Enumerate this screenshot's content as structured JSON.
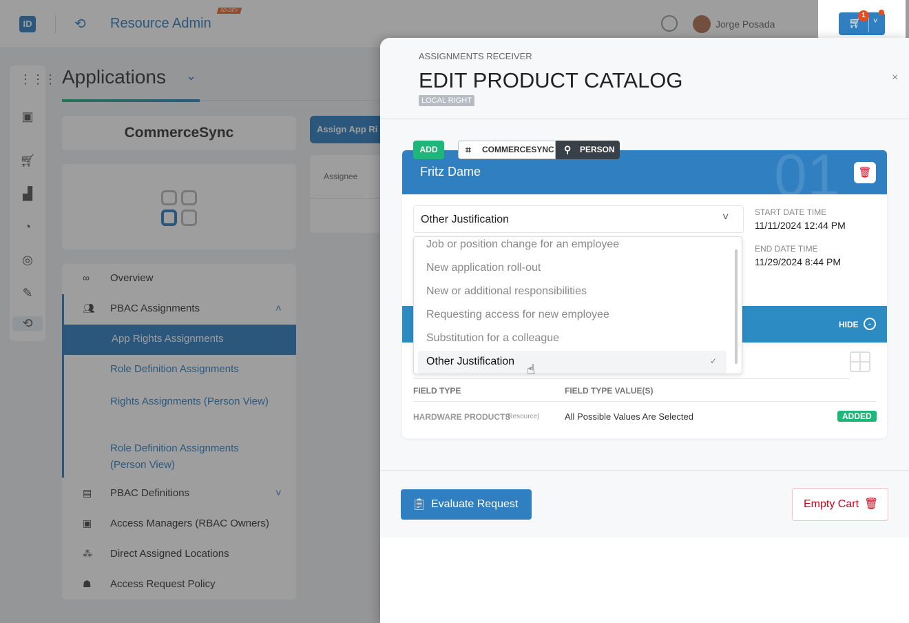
{
  "header": {
    "app_title": "Resource Admin",
    "env_badge": "IID-DEV",
    "user_name": "Jorge Posada",
    "cart_count": "1"
  },
  "page": {
    "title": "Applications",
    "app_name": "CommerceSync",
    "assign_button": "Assign App Ri",
    "table_header": "Assignee"
  },
  "menu": [
    {
      "label": "Overview",
      "icon": "glasses-icon"
    },
    {
      "label": "PBAC Assignments",
      "icon": "group-icon"
    },
    {
      "label": "App Rights Assignments"
    },
    {
      "label": "Role Definition Assignments"
    },
    {
      "label": "Rights Assignments (Person View)"
    },
    {
      "label": "Role Definition Assignments (Person View)"
    },
    {
      "label": "PBAC Definitions",
      "icon": "definitions-icon"
    },
    {
      "label": "Access Managers (RBAC Owners)",
      "icon": "manager-icon"
    },
    {
      "label": "Direct Assigned Locations",
      "icon": "locations-icon"
    },
    {
      "label": "Access Request Policy",
      "icon": "policy-icon"
    }
  ],
  "panel": {
    "subtitle": "ASSIGNMENTS RECEIVER",
    "title": "EDIT PRODUCT CATALOG",
    "badge": "LOCAL RIGHT",
    "card": {
      "action_tag": "ADD",
      "app_tag": "COMMERCESYNC",
      "type_tag": "PERSON",
      "person": "Fritz Dame",
      "index": "01",
      "justification": "Other Justification",
      "options": [
        "Job or position change for an employee",
        "New application roll-out",
        "New or additional responsibilities",
        "Requesting access for new employee",
        "Substitution for a colleague",
        "Other Justification"
      ],
      "start_label": "START DATE TIME",
      "start_value": "11/11/2024 12:44 PM",
      "end_label": "END DATE TIME",
      "end_value": "11/29/2024 8:44 PM",
      "hide_label": "HIDE",
      "col_field_type": "FIELD TYPE",
      "col_values": "FIELD TYPE VALUE(S)",
      "row": {
        "field": "HARDWARE PRODUCTS",
        "field_sub": "(Resource)",
        "value": "All Possible Values Are Selected",
        "status": "ADDED"
      }
    },
    "evaluate_button": "Evaluate Request",
    "empty_cart_button": "Empty Cart"
  },
  "colors": {
    "primary": "#2f7fc1",
    "success": "#1fb67a",
    "danger": "#d0021b"
  }
}
